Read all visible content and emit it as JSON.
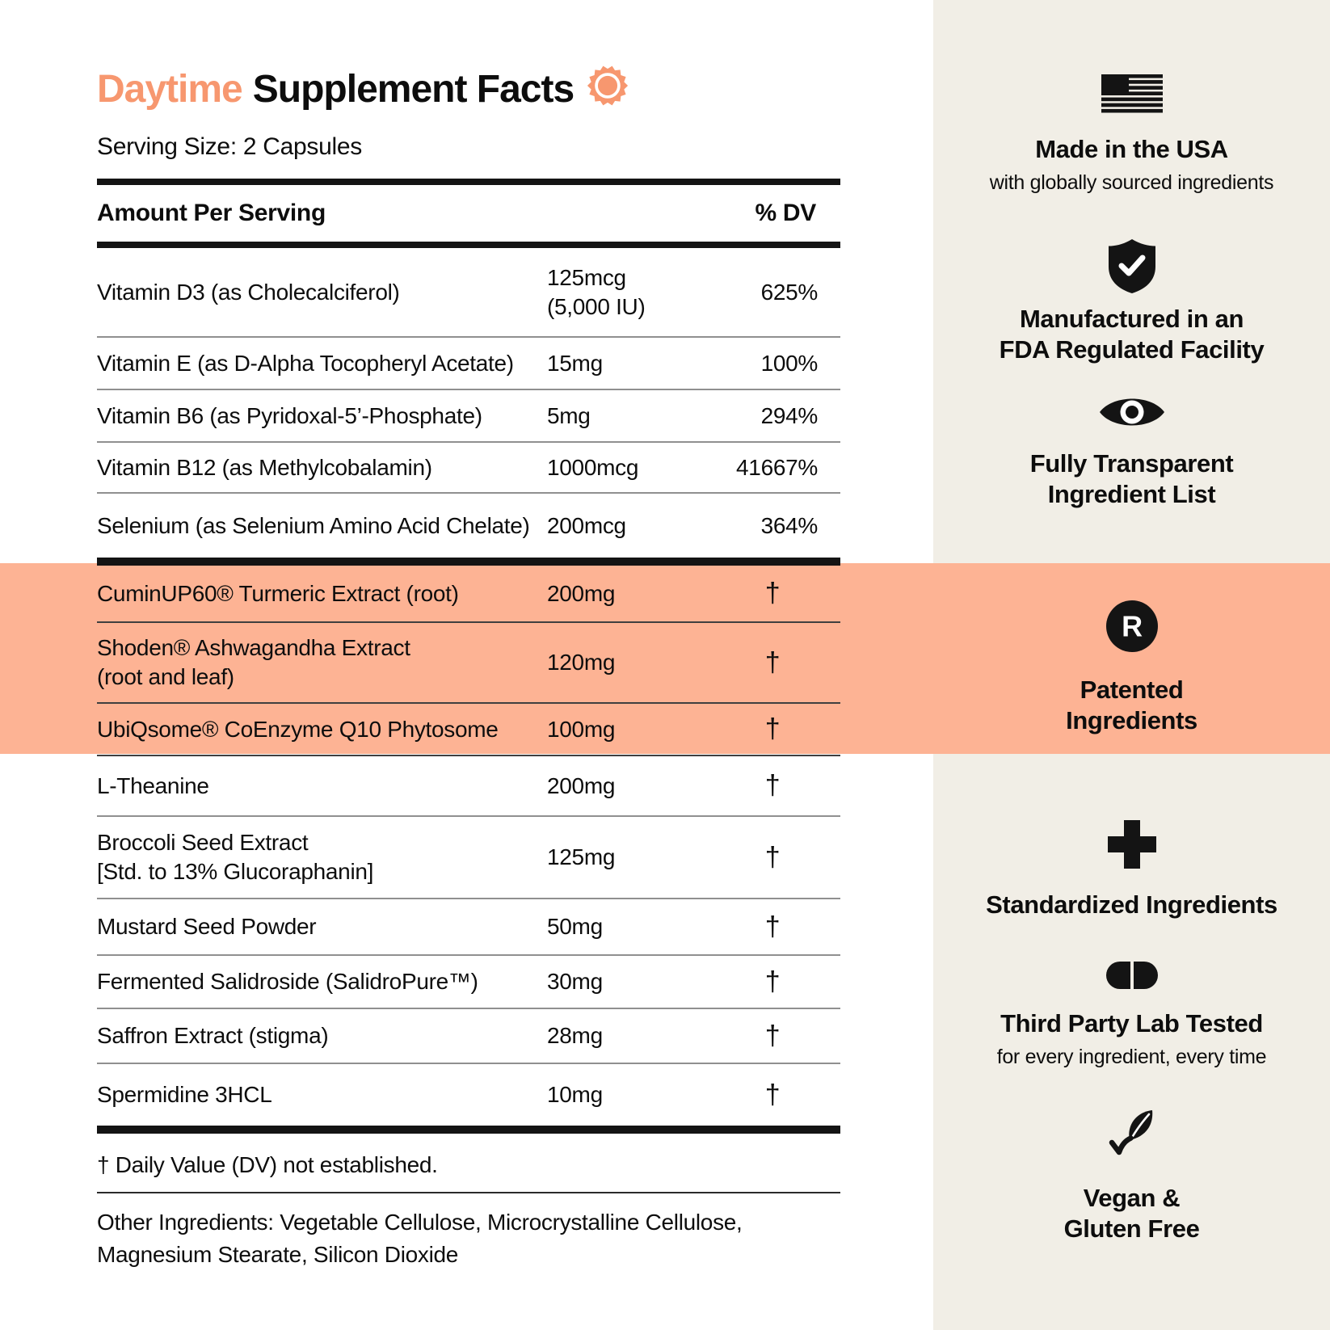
{
  "colors": {
    "accent": "#F7976F",
    "highlight_band": "#FDB394",
    "sidebar_background": "#F1EEE6",
    "text": "#0d0d0d"
  },
  "header": {
    "title_accent": "Daytime",
    "title_rest": "Supplement Facts",
    "title_icon": "sun-icon",
    "serving_size": "Serving Size: 2 Capsules"
  },
  "table": {
    "amount_header": "Amount Per Serving",
    "dv_header": "% DV",
    "groups": [
      {
        "highlighted": false,
        "rows": [
          {
            "name": "Vitamin D3 (as Cholecalciferol)",
            "amount": "125mcg\n(5,000 IU)",
            "dv": "625%"
          },
          {
            "name": "Vitamin E (as D-Alpha Tocopheryl Acetate)",
            "amount": "15mg",
            "dv": "100%"
          },
          {
            "name": "Vitamin B6 (as Pyridoxal-5’-Phosphate)",
            "amount": "5mg",
            "dv": "294%"
          },
          {
            "name": "Vitamin B12 (as Methylcobalamin)",
            "amount": "1000mcg",
            "dv": "41667%"
          },
          {
            "name": "Selenium (as Selenium Amino Acid Chelate)",
            "amount": "200mcg",
            "dv": "364%"
          }
        ]
      },
      {
        "highlighted": true,
        "rows": [
          {
            "name": "CuminUP60® Turmeric Extract (root)",
            "amount": "200mg",
            "dv": "†"
          },
          {
            "name": "Shoden® Ashwagandha Extract\n(root and leaf)",
            "amount": "120mg",
            "dv": "†"
          },
          {
            "name": "UbiQsome® CoEnzyme Q10 Phytosome",
            "amount": "100mg",
            "dv": "†"
          }
        ]
      },
      {
        "highlighted": false,
        "rows": [
          {
            "name": "L-Theanine",
            "amount": "200mg",
            "dv": "†"
          },
          {
            "name": "Broccoli Seed Extract\n[Std. to 13% Glucoraphanin]",
            "amount": "125mg",
            "dv": "†"
          },
          {
            "name": "Mustard Seed Powder",
            "amount": "50mg",
            "dv": "†"
          },
          {
            "name": "Fermented Salidroside (SalidroPure™)",
            "amount": "30mg",
            "dv": "†"
          },
          {
            "name": "Saffron Extract (stigma)",
            "amount": "28mg",
            "dv": "†"
          },
          {
            "name": "Spermidine 3HCL",
            "amount": "10mg",
            "dv": "†"
          }
        ]
      }
    ]
  },
  "footnotes": {
    "dv_note": "† Daily Value (DV) not established.",
    "other_ingredients": "Other Ingredients: Vegetable Cellulose, Microcrystalline Cellulose,\nMagnesium Stearate, Silicon Dioxide"
  },
  "sidebar": {
    "items": [
      {
        "icon": "usa-flag-icon",
        "label": "Made in the USA",
        "sublabel": "with globally sourced ingredients"
      },
      {
        "icon": "shield-check-icon",
        "label": "Manufactured in an\nFDA Regulated Facility"
      },
      {
        "icon": "eye-icon",
        "label": "Fully Transparent\nIngredient List"
      },
      {
        "icon": "registered-mark-icon",
        "icon_letter": "R",
        "label": "Patented\nIngredients"
      },
      {
        "icon": "plus-icon",
        "label": "Standardized Ingredients"
      },
      {
        "icon": "capsule-icon",
        "label": "Third Party Lab Tested",
        "sublabel": "for every ingredient, every time"
      },
      {
        "icon": "leaf-check-icon",
        "label": "Vegan &\nGluten Free"
      }
    ]
  }
}
